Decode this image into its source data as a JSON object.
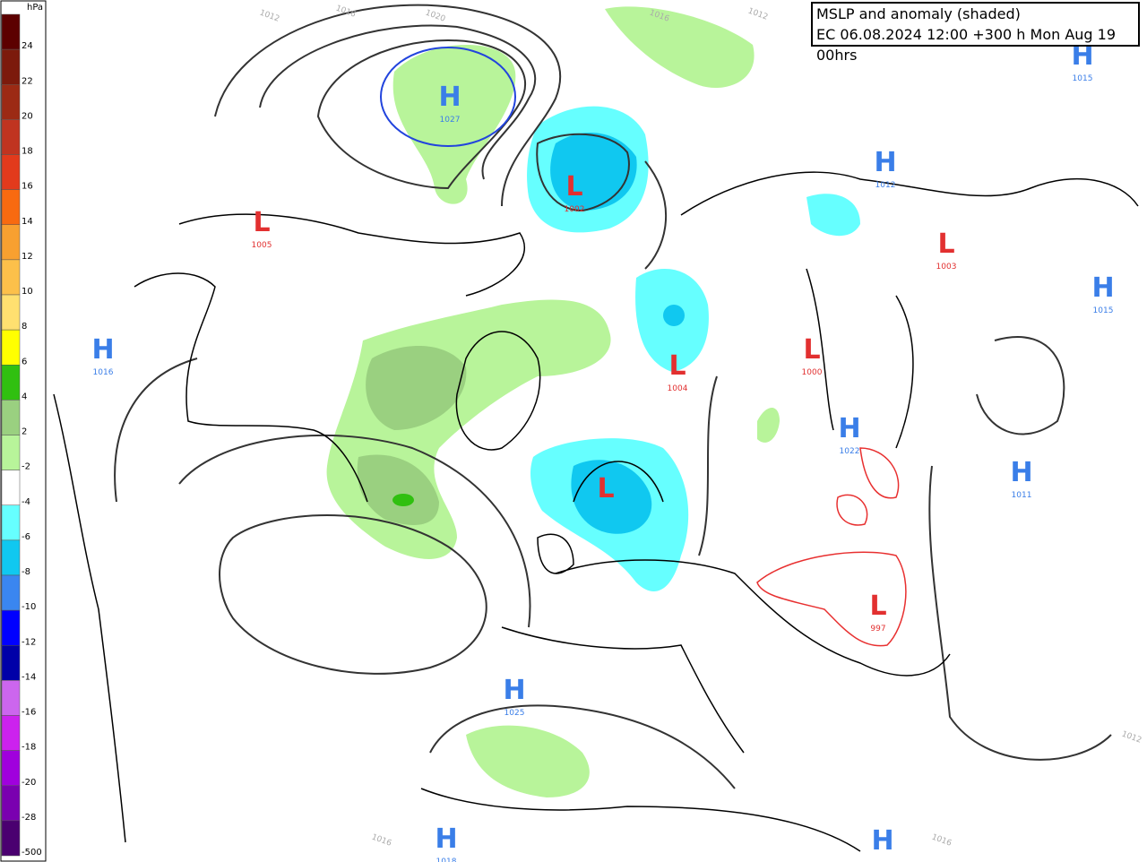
{
  "header": {
    "title": "MSLP and anomaly (shaded)",
    "subtitle": "EC 06.08.2024 12:00 +300 h Mon Aug 19 00hrs"
  },
  "legend": {
    "unit": "hPa",
    "entries": [
      {
        "label": 24,
        "color": "#5c0000"
      },
      {
        "label": 22,
        "color": "#7c1a0c"
      },
      {
        "label": 20,
        "color": "#9c2a14"
      },
      {
        "label": 18,
        "color": "#c03420"
      },
      {
        "label": 16,
        "color": "#e23a1c"
      },
      {
        "label": 14,
        "color": "#f86a10"
      },
      {
        "label": 12,
        "color": "#f8a030"
      },
      {
        "label": 10,
        "color": "#fcc04a"
      },
      {
        "label": 8,
        "color": "#ffe070"
      },
      {
        "label": 6,
        "color": "#ffff00"
      },
      {
        "label": 4,
        "color": "#30c010"
      },
      {
        "label": 2,
        "color": "#9ad080"
      },
      {
        "label": -2,
        "color": "#b8f49a"
      },
      {
        "label": -4,
        "color": "#ffffff"
      },
      {
        "label": -6,
        "color": "#66ffff"
      },
      {
        "label": -8,
        "color": "#10c8f0"
      },
      {
        "label": -10,
        "color": "#3a86f0"
      },
      {
        "label": -12,
        "color": "#0000ff"
      },
      {
        "label": -14,
        "color": "#0000a8"
      },
      {
        "label": -16,
        "color": "#cc66ee"
      },
      {
        "label": -18,
        "color": "#cc22ee"
      },
      {
        "label": -20,
        "color": "#a000dd"
      },
      {
        "label": -28,
        "color": "#7a00b0"
      },
      {
        "label": -500,
        "color": "#4a0070"
      }
    ]
  },
  "centers": [
    {
      "letter": "H",
      "value": 1027
    },
    {
      "letter": "L",
      "value": 1002
    },
    {
      "letter": "L",
      "value": 1005
    },
    {
      "letter": "H",
      "value": 1015
    },
    {
      "letter": "H",
      "value": 1012
    },
    {
      "letter": "L",
      "value": 1003
    },
    {
      "letter": "H",
      "value": 1015
    },
    {
      "letter": "H",
      "value": 1016
    },
    {
      "letter": "L",
      "value": 1004
    },
    {
      "letter": "L",
      "value": 1000
    },
    {
      "letter": "H",
      "value": 1022
    },
    {
      "letter": "L",
      "value": null
    },
    {
      "letter": "H",
      "value": 1011
    },
    {
      "letter": "L",
      "value": 997
    },
    {
      "letter": "H",
      "value": 1025
    },
    {
      "letter": "H",
      "value": 1018
    },
    {
      "letter": "H",
      "value": null
    }
  ],
  "isobar_labels": [
    1012,
    1016,
    1020,
    1016,
    1012,
    1016,
    1016,
    1012
  ]
}
